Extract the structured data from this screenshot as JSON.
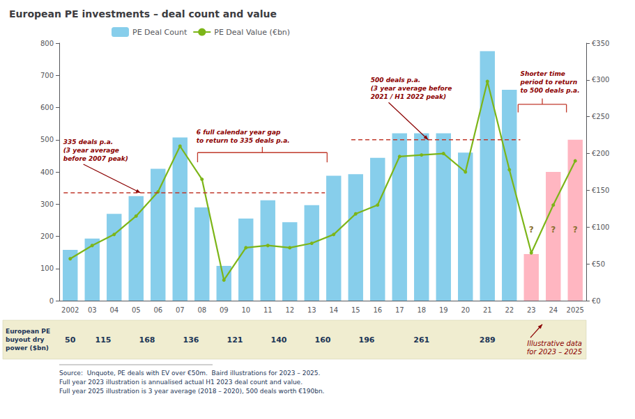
{
  "chart_data": {
    "type": "bar",
    "title": "European PE investments – deal count and value",
    "categories": [
      "2002",
      "03",
      "04",
      "05",
      "06",
      "07",
      "08",
      "09",
      "10",
      "11",
      "12",
      "13",
      "14",
      "15",
      "16",
      "17",
      "18",
      "19",
      "20",
      "21",
      "22",
      "23",
      "24",
      "2025"
    ],
    "series": [
      {
        "name": "PE Deal Count",
        "type": "bar",
        "color": "#87CEEB",
        "colors": [
          "#87CEEB",
          "#87CEEB",
          "#87CEEB",
          "#87CEEB",
          "#87CEEB",
          "#87CEEB",
          "#87CEEB",
          "#87CEEB",
          "#87CEEB",
          "#87CEEB",
          "#87CEEB",
          "#87CEEB",
          "#87CEEB",
          "#87CEEB",
          "#87CEEB",
          "#87CEEB",
          "#87CEEB",
          "#87CEEB",
          "#87CEEB",
          "#87CEEB",
          "#87CEEB",
          "#FFB6C1",
          "#FFB6C1",
          "#FFB6C1"
        ],
        "values": [
          158,
          193,
          270,
          325,
          410,
          507,
          290,
          108,
          255,
          312,
          244,
          297,
          388,
          393,
          444,
          520,
          520,
          520,
          460,
          775,
          655,
          145,
          400,
          500
        ]
      },
      {
        "name": "PE Deal Value (€bn)",
        "type": "line",
        "color": "#7CB518",
        "marker": "circle",
        "axis": "y2",
        "values": [
          57,
          75,
          90,
          115,
          148,
          210,
          165,
          28,
          72,
          75,
          72,
          78,
          90,
          118,
          130,
          196,
          198,
          200,
          175,
          298,
          178,
          65,
          130,
          190
        ]
      }
    ],
    "ylim": [
      0,
      800
    ],
    "yticks": [
      0,
      100,
      200,
      300,
      400,
      500,
      600,
      700,
      800
    ],
    "y2lim": [
      0,
      350
    ],
    "y2ticks": [
      {
        "value": 0,
        "label": "€0"
      },
      {
        "value": 50,
        "label": "€50"
      },
      {
        "value": 100,
        "label": "€100"
      },
      {
        "value": 150,
        "label": "€150"
      },
      {
        "value": 200,
        "label": "€200"
      },
      {
        "value": 250,
        "label": "€250"
      },
      {
        "value": 300,
        "label": "€300"
      },
      {
        "value": 350,
        "label": "€350"
      }
    ],
    "grid": false,
    "legend": "upper left",
    "reference_lines": [
      {
        "value": 335,
        "color": "#C0392B"
      },
      {
        "value": 500,
        "color": "#C0392B"
      }
    ],
    "annotations": [
      {
        "text": "335 deals p.a.\n(3 year average\nbefore 2007 peak)",
        "color": "#8B0000"
      },
      {
        "text": "500 deals p.a.\n(3 year average before\n2021 / H1 2022 peak)",
        "color": "#8B0000"
      },
      {
        "text": "6 full calendar ​year gap\nto return to 335 deals p.a.",
        "color": "#8B0000"
      },
      {
        "text": "Shorter time\nperiod to return\nto 500 deals p.a.",
        "color": "#8B0000"
      },
      {
        "text": "Illustrative data\nfor 2023 – 2025",
        "color": "#8B0000"
      },
      {
        "text": "?",
        "color": "#8B7030"
      },
      {
        "text": "?",
        "color": "#8B7030"
      },
      {
        "text": "?",
        "color": "#8B7030"
      }
    ],
    "table": {
      "label": "European PE\nbuyout dry\npower ($bn)",
      "values": [
        50,
        115,
        168,
        136,
        121,
        140,
        160,
        196,
        261,
        289
      ]
    },
    "source": "Source:  Unquote, PE deals with EV over €50m.  Baird illustrations for 2023 – 2025.\nFull year 2023 illustration is annualised actual H1 2023 deal count and value.\nFull year 2025 illustration is 3 year average (2018 – 2020), 500 deals worth €190bn."
  }
}
